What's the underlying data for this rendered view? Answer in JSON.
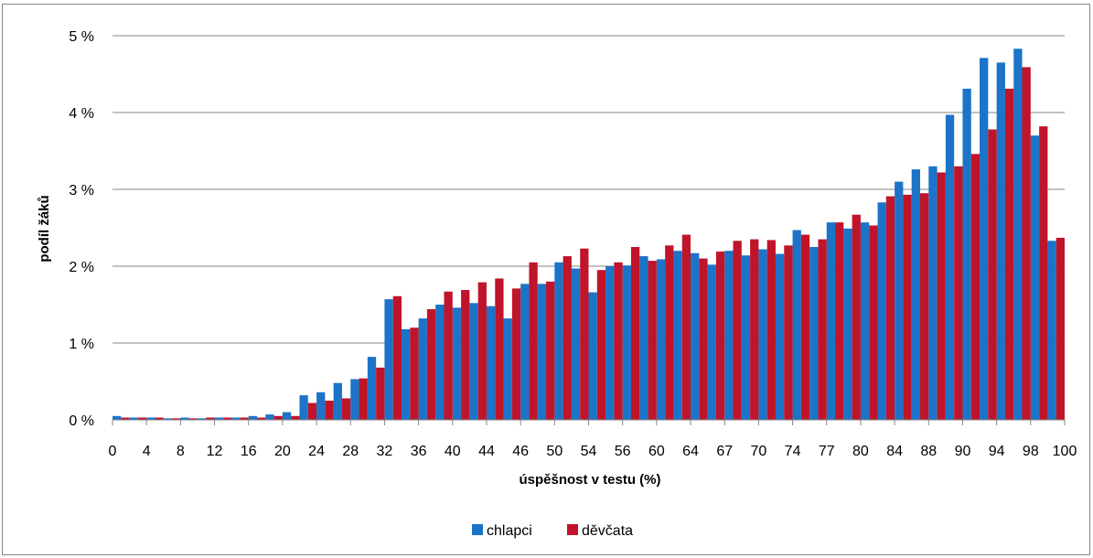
{
  "chart_data": {
    "type": "bar",
    "title": "",
    "xlabel": "úspěšnost v testu (%)",
    "ylabel": "podíl žáků",
    "ylim": [
      0,
      5
    ],
    "yticks": [
      0,
      1,
      2,
      3,
      4,
      5
    ],
    "ytick_labels": [
      "0 %",
      "1 %",
      "2 %",
      "3 %",
      "4 %",
      "5 %"
    ],
    "grid": true,
    "legend": "bottom-center",
    "xtick_labels": [
      "0",
      "4",
      "8",
      "12",
      "16",
      "20",
      "24",
      "28",
      "32",
      "36",
      "40",
      "44",
      "46",
      "50",
      "54",
      "56",
      "60",
      "64",
      "67",
      "70",
      "74",
      "77",
      "80",
      "84",
      "88",
      "90",
      "94",
      "98",
      "100"
    ],
    "categories": [
      "0",
      "2",
      "4",
      "6",
      "8",
      "10",
      "12",
      "14",
      "16",
      "18",
      "20",
      "22",
      "24",
      "26",
      "28",
      "30",
      "32",
      "34",
      "36",
      "38",
      "40",
      "42",
      "44",
      "45",
      "46",
      "48",
      "50",
      "52",
      "54",
      "55",
      "56",
      "58",
      "60",
      "62",
      "64",
      "65",
      "67",
      "68",
      "70",
      "72",
      "74",
      "75",
      "77",
      "78",
      "80",
      "82",
      "84",
      "86",
      "88",
      "89",
      "90",
      "92",
      "94",
      "96",
      "98",
      "100"
    ],
    "series": [
      {
        "name": "chlapci",
        "color": "#1b74c8",
        "values": [
          0.05,
          0.03,
          0.03,
          0.02,
          0.03,
          0.02,
          0.03,
          0.03,
          0.05,
          0.07,
          0.1,
          0.32,
          0.36,
          0.48,
          0.53,
          0.82,
          1.57,
          1.18,
          1.32,
          1.5,
          1.46,
          1.52,
          1.48,
          1.32,
          1.77,
          1.77,
          2.05,
          1.97,
          1.66,
          2.0,
          2.01,
          2.13,
          2.09,
          2.2,
          2.17,
          2.02,
          2.2,
          2.14,
          2.22,
          2.16,
          2.47,
          2.25,
          2.57,
          2.49,
          2.57,
          2.83,
          3.1,
          3.26,
          3.3,
          3.97,
          4.31,
          4.71,
          4.65,
          4.83,
          3.7,
          2.33
        ]
      },
      {
        "name": "děvčata",
        "color": "#c0142a",
        "values": [
          0.03,
          0.03,
          0.03,
          0.02,
          0.02,
          0.03,
          0.03,
          0.03,
          0.03,
          0.05,
          0.05,
          0.22,
          0.25,
          0.28,
          0.54,
          0.68,
          1.61,
          1.2,
          1.44,
          1.67,
          1.69,
          1.79,
          1.84,
          1.71,
          2.05,
          1.8,
          2.13,
          2.23,
          1.95,
          2.05,
          2.25,
          2.07,
          2.27,
          2.41,
          2.1,
          2.19,
          2.33,
          2.35,
          2.34,
          2.27,
          2.41,
          2.35,
          2.57,
          2.67,
          2.53,
          2.91,
          2.93,
          2.95,
          3.22,
          3.3,
          3.46,
          3.78,
          4.31,
          4.59,
          3.82,
          2.37
        ]
      }
    ]
  }
}
